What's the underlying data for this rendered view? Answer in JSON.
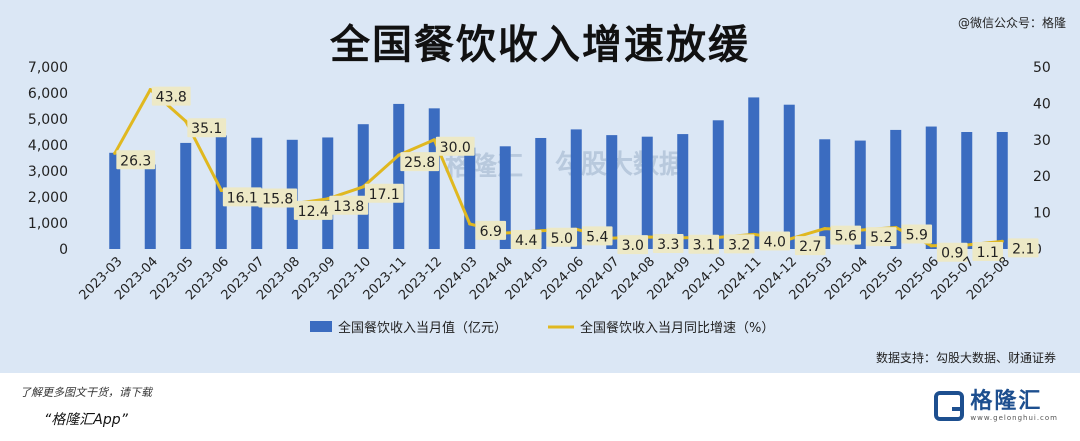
{
  "header": {
    "title": "全国餐饮收入增速放缓",
    "watermark": "@微信公众号：格隆"
  },
  "footer": {
    "source": "数据支持：勾股大数据、财通证券",
    "note": "了解更多图文干货，请下载",
    "app": "“格隆汇App”",
    "logo_name": "格隆汇",
    "logo_url": "www.gelonghui.com"
  },
  "chart_data": {
    "type": "bar",
    "categories": [
      "2023-03",
      "2023-04",
      "2023-05",
      "2023-06",
      "2023-07",
      "2023-08",
      "2023-09",
      "2023-10",
      "2023-11",
      "2023-12",
      "2024-03",
      "2024-04",
      "2024-05",
      "2024-06",
      "2024-07",
      "2024-08",
      "2024-09",
      "2024-10",
      "2024-11",
      "2024-12",
      "2025-03",
      "2025-04",
      "2025-05",
      "2025-06",
      "2025-07",
      "2025-08"
    ],
    "series": [
      {
        "name": "全国餐饮收入当月值（亿元）",
        "type": "bar",
        "axis": "left",
        "color": "#3b6cc0",
        "values": [
          3700,
          3250,
          4080,
          4370,
          4280,
          4200,
          4290,
          4800,
          5580,
          5410,
          3900,
          3950,
          4270,
          4600,
          4380,
          4320,
          4420,
          4950,
          5830,
          5550,
          4220,
          4170,
          4580,
          4710,
          4500,
          4500
        ]
      },
      {
        "name": "全国餐饮收入当月同比增速（%）",
        "type": "line",
        "axis": "right",
        "color": "#e0b820",
        "values": [
          26.3,
          43.8,
          35.1,
          16.1,
          15.8,
          12.4,
          13.8,
          17.1,
          25.8,
          30.0,
          6.9,
          4.4,
          5.0,
          5.4,
          3.0,
          3.3,
          3.1,
          3.2,
          4.0,
          2.7,
          5.6,
          5.2,
          5.9,
          0.9,
          1.1,
          2.1
        ],
        "labels": [
          "26.3",
          "43.8",
          "35.1",
          "16.1",
          "15.8",
          "12.4",
          "13.8",
          "17.1",
          "25.8",
          "30.0",
          "6.9",
          "4.4",
          "5.0",
          "5.4",
          "3.0",
          "3.3",
          "3.1",
          "3.2",
          "4.0",
          "2.7",
          "5.6",
          "5.2",
          "5.9",
          "0.9",
          "1.1",
          "2.1"
        ]
      }
    ],
    "y_left": {
      "ticks": [
        "0",
        "1,000",
        "2,000",
        "3,000",
        "4,000",
        "5,000",
        "6,000",
        "7,000"
      ],
      "range": [
        0,
        7000
      ]
    },
    "y_right": {
      "ticks": [
        "0",
        "10",
        "20",
        "30",
        "40",
        "50"
      ],
      "range": [
        0,
        50
      ]
    },
    "grid": false,
    "legend_position": "bottom",
    "watermarks": [
      "格隆汇",
      "勾股大数据"
    ]
  }
}
